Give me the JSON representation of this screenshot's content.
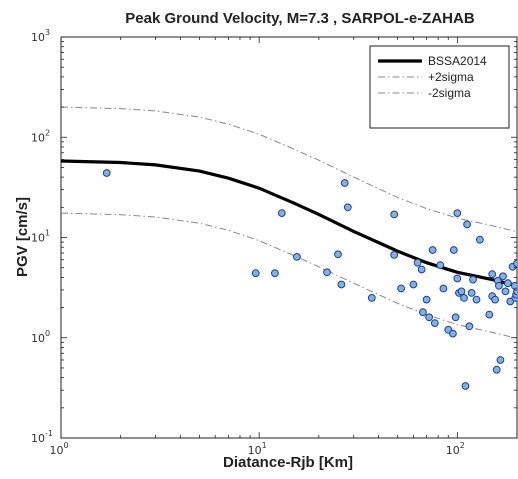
{
  "chart_data": {
    "type": "scatter",
    "title": "Peak Ground Velocity, M=7.3 , SARPOL-e-ZAHAB",
    "xlabel": "Diatance-Rjb  [Km]",
    "ylabel": "PGV  [cm/s]",
    "xscale": "log",
    "yscale": "log",
    "xlim": [
      1,
      200
    ],
    "ylim": [
      0.1,
      1000
    ],
    "x_ticks": [
      {
        "base": "10",
        "exp": "0",
        "value": 1
      },
      {
        "base": "10",
        "exp": "1",
        "value": 10
      },
      {
        "base": "10",
        "exp": "2",
        "value": 100
      }
    ],
    "y_ticks": [
      {
        "base": "10",
        "exp": "-1",
        "value": 0.1
      },
      {
        "base": "10",
        "exp": "0",
        "value": 1
      },
      {
        "base": "10",
        "exp": "1",
        "value": 10
      },
      {
        "base": "10",
        "exp": "2",
        "value": 100
      },
      {
        "base": "10",
        "exp": "3",
        "value": 1000
      }
    ],
    "grid": false,
    "legend_position": "top-right",
    "series": [
      {
        "name": "BSSA2014",
        "kind": "line",
        "style": "solid",
        "color": "#000000",
        "x": [
          1,
          2,
          3,
          5,
          7,
          10,
          15,
          20,
          30,
          50,
          70,
          100,
          150,
          200
        ],
        "y": [
          58,
          56,
          53,
          46,
          39,
          31,
          22,
          17,
          11.5,
          7.3,
          5.6,
          4.5,
          3.8,
          3.3
        ]
      },
      {
        "name": "+2sigma",
        "kind": "line",
        "style": "dashdot",
        "color": "#888888",
        "x": [
          1,
          2,
          3,
          5,
          7,
          10,
          15,
          20,
          30,
          50,
          70,
          100,
          150,
          200
        ],
        "y": [
          200,
          193,
          183,
          159,
          135,
          107,
          76,
          59,
          40,
          25,
          19.4,
          15.6,
          13.1,
          11.4
        ]
      },
      {
        "name": "-2sigma",
        "kind": "line",
        "style": "dashdot",
        "color": "#888888",
        "x": [
          1,
          2,
          3,
          5,
          7,
          10,
          15,
          20,
          30,
          50,
          70,
          100,
          150,
          200
        ],
        "y": [
          17.5,
          16.9,
          16,
          13.9,
          11.8,
          9.3,
          6.6,
          5.1,
          3.5,
          2.2,
          1.7,
          1.35,
          1.13,
          0.99
        ]
      },
      {
        "name": "",
        "kind": "scatter",
        "color": "#7fb2e5",
        "edge": "#1f3f8f",
        "x": [
          1.7,
          9.6,
          12,
          13,
          15.5,
          22,
          25,
          26,
          27,
          28,
          37,
          48,
          48,
          52,
          60,
          63,
          66,
          67,
          70,
          72,
          75,
          77,
          82,
          85,
          90,
          95,
          96,
          98,
          100,
          100,
          102,
          105,
          108,
          110,
          112,
          115,
          118,
          120,
          125,
          130,
          145,
          150,
          150,
          155,
          158,
          160,
          162,
          165,
          170,
          175,
          180,
          185,
          190,
          195,
          196,
          198,
          200,
          200
        ],
        "y": [
          44,
          4.4,
          4.4,
          17.5,
          6.4,
          4.5,
          6.8,
          3.4,
          35,
          20,
          2.5,
          17,
          6.7,
          3.1,
          3.4,
          5.6,
          4.8,
          1.8,
          2.4,
          1.6,
          7.5,
          1.4,
          5.3,
          3.1,
          1.2,
          1.1,
          7.5,
          1.6,
          3.9,
          17.5,
          2.8,
          2.9,
          2.5,
          0.33,
          13.5,
          1.3,
          2.8,
          3.8,
          2.4,
          9.5,
          1.7,
          2.6,
          4.3,
          2.4,
          0.48,
          3.7,
          3.3,
          0.6,
          4.1,
          2.9,
          3.5,
          2.3,
          5.1,
          3.3,
          2.5,
          2.7,
          5.5,
          2.9
        ]
      }
    ]
  }
}
